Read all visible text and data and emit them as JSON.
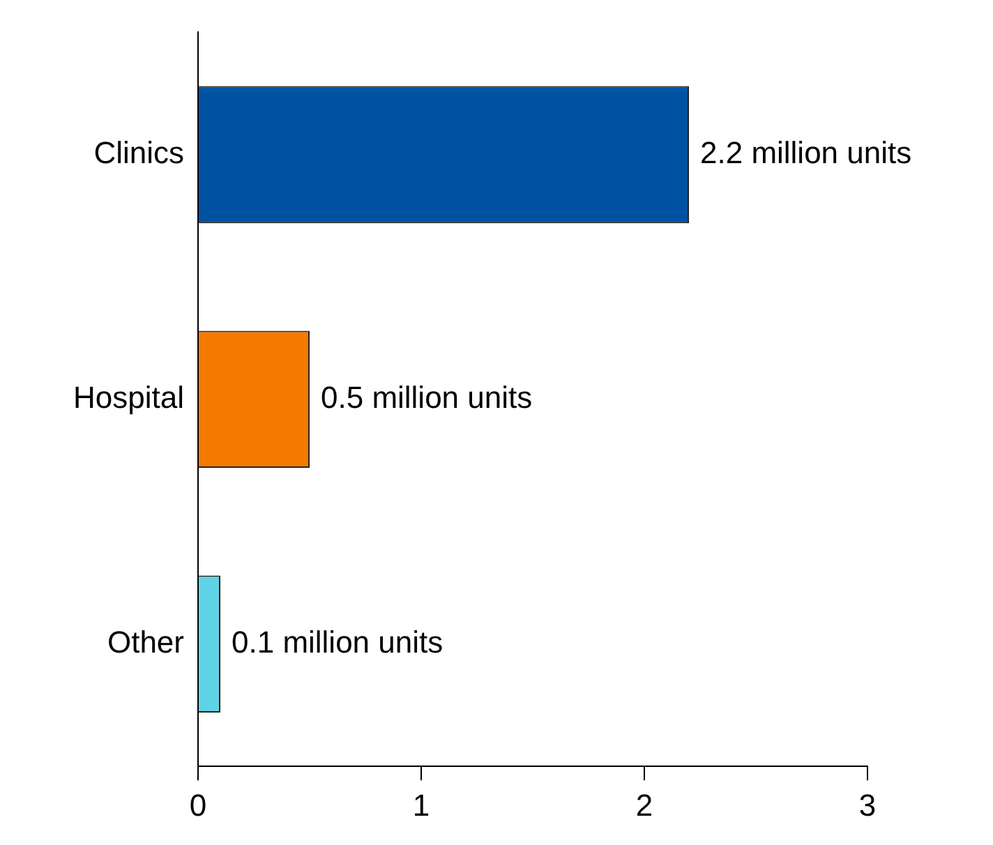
{
  "chart_data": {
    "type": "bar",
    "orientation": "horizontal",
    "categories": [
      "Clinics",
      "Hospital",
      "Other"
    ],
    "values": [
      2.2,
      0.5,
      0.1
    ],
    "colors": [
      "#0052a3",
      "#f47a00",
      "#5fd3e6"
    ],
    "value_labels": [
      "2.2 million units",
      "0.5 million units",
      "0.1 million units"
    ],
    "xlim": [
      0,
      3
    ],
    "xticks": [
      0,
      1,
      2,
      3
    ],
    "grid": false
  }
}
